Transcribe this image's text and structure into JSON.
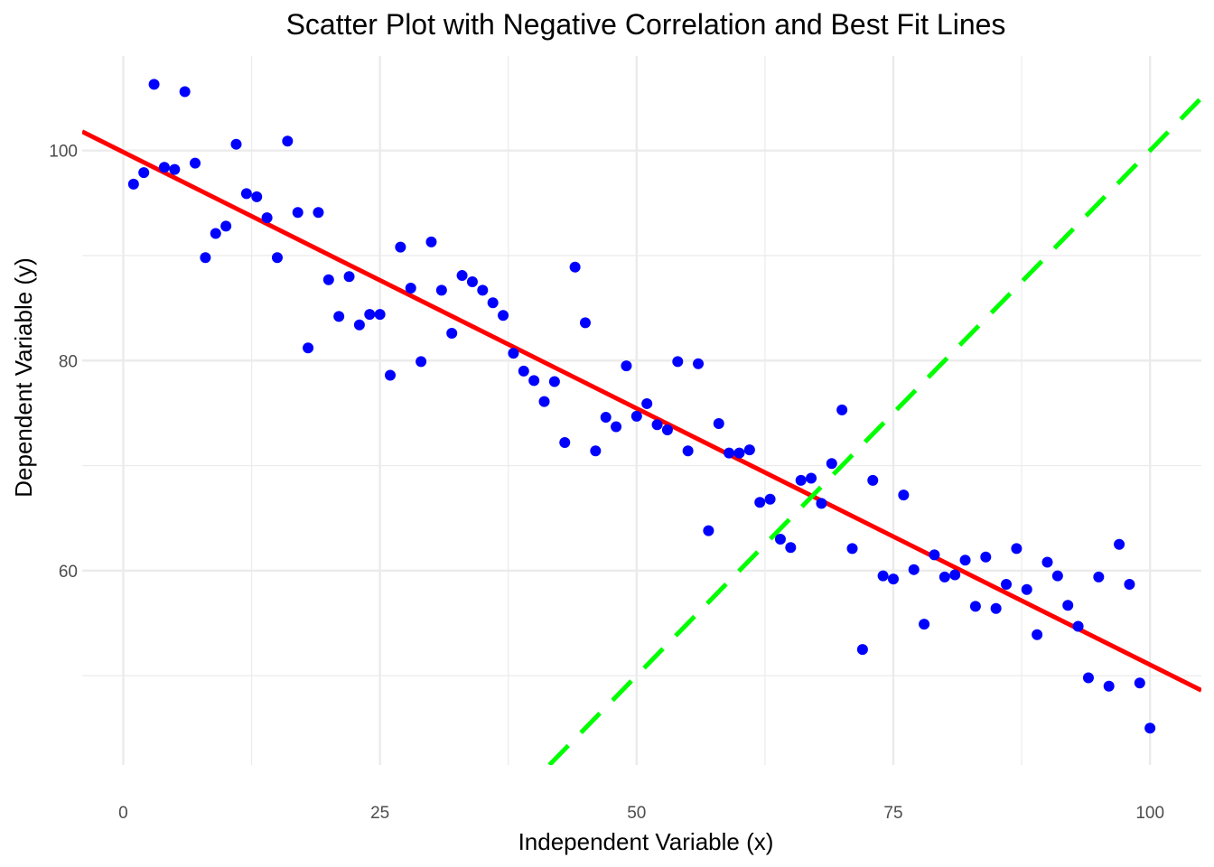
{
  "chart_data": {
    "type": "scatter",
    "title": "Scatter Plot with Negative Correlation and Best Fit Lines",
    "xlabel": "Independent Variable (x)",
    "ylabel": "Dependent Variable (y)",
    "xlim": [
      -4,
      105
    ],
    "ylim": [
      41.5,
      109
    ],
    "x_ticks": [
      0,
      25,
      50,
      75,
      100
    ],
    "x_tick_labels": [
      "0",
      "25",
      "50",
      "75",
      "100"
    ],
    "y_ticks": [
      60,
      80,
      100
    ],
    "y_tick_labels": [
      "60",
      "80",
      "100"
    ],
    "x_minor_gridlines": [
      12.5,
      37.5,
      62.5,
      87.5
    ],
    "y_minor_gridlines": [
      50,
      70,
      90
    ],
    "grid": true,
    "background": "#ffffff",
    "grid_color": "#ebebeb",
    "series": [
      {
        "type": "scatter",
        "color": "#0000ff",
        "x": [
          1,
          2,
          3,
          4,
          5,
          6,
          7,
          8,
          9,
          10,
          11,
          12,
          13,
          14,
          15,
          16,
          17,
          18,
          19,
          20,
          21,
          22,
          23,
          24,
          25,
          26,
          27,
          28,
          29,
          30,
          31,
          32,
          33,
          34,
          35,
          36,
          37,
          38,
          39,
          40,
          41,
          42,
          43,
          44,
          45,
          46,
          47,
          48,
          49,
          50,
          51,
          52,
          53,
          54,
          55,
          56,
          57,
          58,
          59,
          60,
          61,
          62,
          63,
          64,
          65,
          66,
          67,
          68,
          69,
          70,
          71,
          72,
          73,
          74,
          75,
          76,
          77,
          78,
          79,
          80,
          81,
          82,
          83,
          84,
          85,
          86,
          87,
          88,
          89,
          90,
          91,
          92,
          93,
          94,
          95,
          96,
          97,
          98,
          99,
          100
        ],
        "y": [
          96.8,
          97.9,
          106.3,
          98.4,
          98.2,
          105.6,
          98.8,
          89.8,
          92.1,
          92.8,
          100.6,
          95.9,
          95.6,
          93.6,
          89.8,
          100.9,
          94.1,
          81.2,
          94.1,
          87.7,
          84.2,
          88.0,
          83.4,
          84.4,
          84.4,
          78.6,
          90.8,
          86.9,
          79.9,
          91.3,
          86.7,
          82.6,
          88.1,
          87.5,
          86.7,
          85.5,
          84.3,
          80.7,
          79.0,
          78.1,
          76.1,
          78.0,
          72.2,
          88.9,
          83.6,
          71.4,
          74.6,
          73.7,
          79.5,
          74.7,
          75.9,
          73.9,
          73.4,
          79.9,
          71.4,
          79.7,
          63.8,
          74.0,
          71.2,
          71.2,
          71.5,
          66.5,
          66.8,
          63.0,
          62.2,
          68.6,
          68.8,
          66.4,
          70.2,
          75.3,
          62.1,
          52.5,
          68.6,
          59.5,
          59.2,
          67.2,
          60.1,
          54.9,
          61.5,
          59.4,
          59.6,
          61.0,
          56.6,
          61.3,
          56.4,
          58.7,
          62.1,
          58.2,
          53.9,
          60.8,
          59.5,
          56.7,
          54.7,
          49.8,
          59.4,
          49.0,
          62.5,
          58.7,
          49.3,
          45.0
        ]
      },
      {
        "type": "line",
        "color": "#ff0000",
        "style": "solid",
        "x": [
          -4,
          105
        ],
        "y": [
          101.8,
          48.6
        ]
      },
      {
        "type": "line",
        "color": "#00ff00",
        "style": "dashed",
        "x": [
          41.5,
          105
        ],
        "y": [
          41.5,
          105.0
        ]
      }
    ]
  }
}
